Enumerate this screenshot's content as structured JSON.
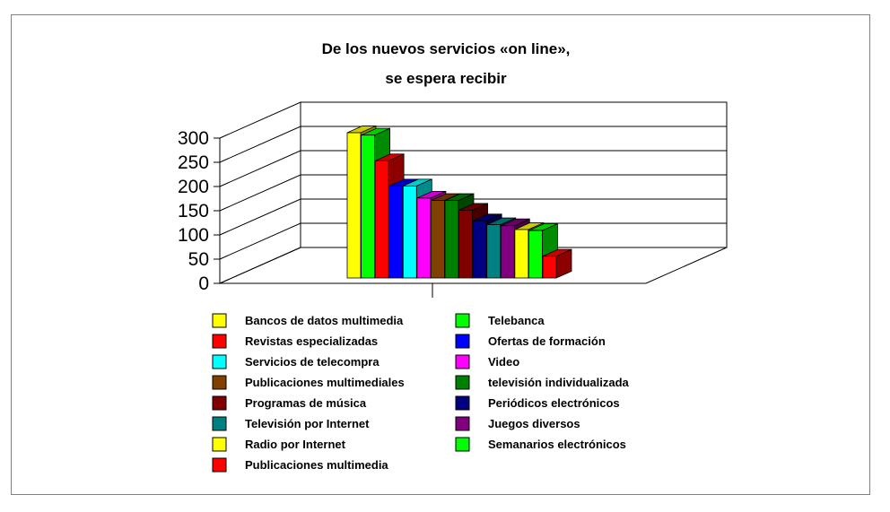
{
  "chart_data": {
    "type": "bar",
    "title": [
      "De los nuevos servicios «on line»,",
      "se espera recibir"
    ],
    "xlabel": "",
    "ylabel": "",
    "ylim": [
      0,
      300
    ],
    "y_ticks": [
      0,
      50,
      100,
      150,
      200,
      250,
      300
    ],
    "grid": true,
    "three_d": true,
    "legend_position": "bottom",
    "series": [
      {
        "name": "Bancos de datos multimedia",
        "value": 300,
        "color": "#FFFF00"
      },
      {
        "name": "Telebanca",
        "value": 295,
        "color": "#00FF00"
      },
      {
        "name": "Revistas  especializadas",
        "value": 242,
        "color": "#FF0000"
      },
      {
        "name": "Ofertas de formación",
        "value": 190,
        "color": "#0000FF"
      },
      {
        "name": "Servicios de telecompra",
        "value": 190,
        "color": "#00FFFF"
      },
      {
        "name": "Video",
        "value": 165,
        "color": "#FF00FF"
      },
      {
        "name": "Publicaciones multimediales",
        "value": 160,
        "color": "#804000"
      },
      {
        "name": "televisión individualizada",
        "value": 160,
        "color": "#008000"
      },
      {
        "name": "Programas de música",
        "value": 140,
        "color": "#800000"
      },
      {
        "name": "Periódicos electrónicos",
        "value": 118,
        "color": "#000080"
      },
      {
        "name": "Televisión por Internet",
        "value": 110,
        "color": "#008080"
      },
      {
        "name": "Juegos diversos",
        "value": 108,
        "color": "#800080"
      },
      {
        "name": "Radio por Internet",
        "value": 100,
        "color": "#FFFF00"
      },
      {
        "name": "Semanarios electrónicos",
        "value": 98,
        "color": "#00FF00"
      },
      {
        "name": "Publicaciones multimedia",
        "value": 45,
        "color": "#FF0000"
      }
    ]
  }
}
